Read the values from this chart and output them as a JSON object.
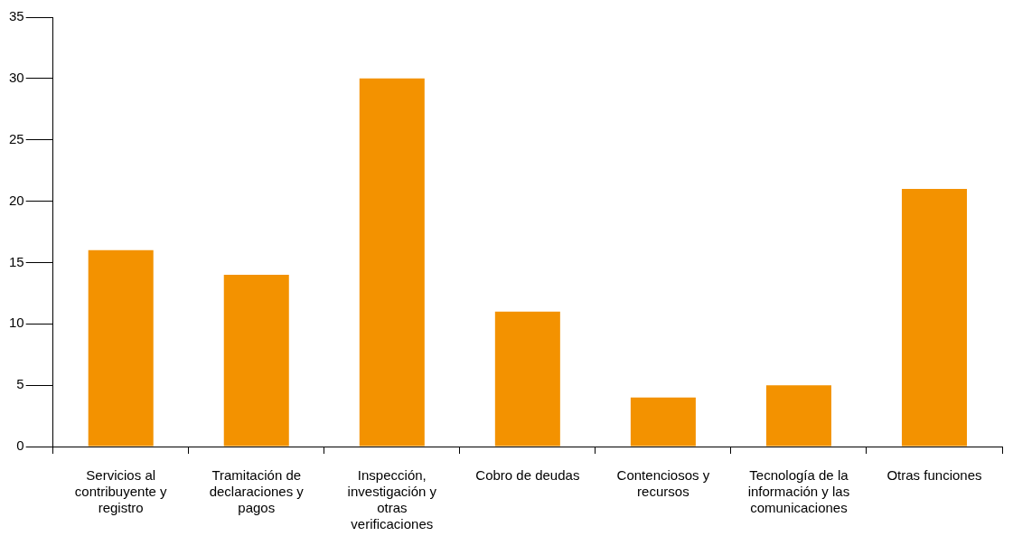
{
  "chart_data": {
    "type": "bar",
    "categories": [
      "Servicios al contribuyente y registro",
      "Tramitación de declaraciones y pagos",
      "Inspección, investigación y otras verificaciones",
      "Cobro de deudas",
      "Contenciosos y recursos",
      "Tecnología de la información y las comunicaciones",
      "Otras funciones"
    ],
    "values": [
      16,
      14,
      30,
      11,
      4,
      5,
      21
    ],
    "color": "#f39200",
    "ylim": [
      0,
      35
    ],
    "yticks": [
      0,
      5,
      10,
      15,
      20,
      25,
      30,
      35
    ],
    "grid": false,
    "legend": false
  }
}
